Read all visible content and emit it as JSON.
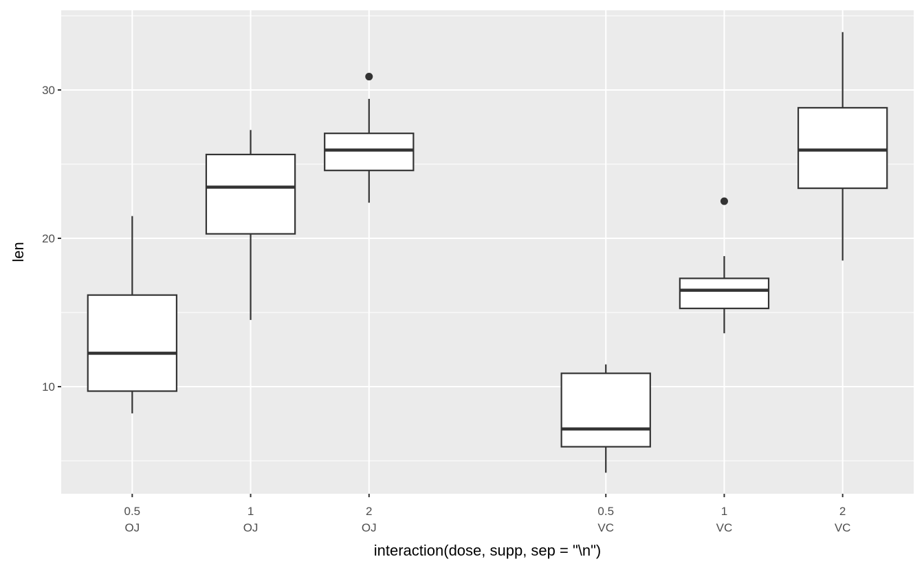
{
  "chart_data": {
    "type": "boxplot",
    "title": "",
    "xlabel": "interaction(dose, supp, sep = \"\\n\")",
    "ylabel": "len",
    "ylim": [
      2.78,
      35.37
    ],
    "y_ticks": [
      10,
      20,
      30
    ],
    "grid": true,
    "panel_background": "#EBEBEB",
    "categories": [
      {
        "dose": "0.5",
        "supp": "OJ",
        "pos": 1
      },
      {
        "dose": "1",
        "supp": "OJ",
        "pos": 2
      },
      {
        "dose": "2",
        "supp": "OJ",
        "pos": 3
      },
      {
        "dose": "0.5",
        "supp": "VC",
        "pos": 5
      },
      {
        "dose": "1",
        "supp": "VC",
        "pos": 6
      },
      {
        "dose": "2",
        "supp": "VC",
        "pos": 7
      }
    ],
    "boxes": [
      {
        "lower_whisker": 8.2,
        "q1": 9.7,
        "median": 12.25,
        "q3": 16.175,
        "upper_whisker": 21.5,
        "outliers": []
      },
      {
        "lower_whisker": 14.5,
        "q1": 20.3,
        "median": 23.45,
        "q3": 25.65,
        "upper_whisker": 27.3,
        "outliers": []
      },
      {
        "lower_whisker": 22.4,
        "q1": 24.575,
        "median": 25.95,
        "q3": 27.075,
        "upper_whisker": 29.4,
        "outliers": [
          30.9
        ]
      },
      {
        "lower_whisker": 4.2,
        "q1": 5.95,
        "median": 7.15,
        "q3": 10.9,
        "upper_whisker": 11.5,
        "outliers": []
      },
      {
        "lower_whisker": 13.6,
        "q1": 15.275,
        "median": 16.5,
        "q3": 17.3,
        "upper_whisker": 18.8,
        "outliers": [
          22.5
        ]
      },
      {
        "lower_whisker": 18.5,
        "q1": 23.375,
        "median": 25.95,
        "q3": 28.8,
        "upper_whisker": 33.9,
        "outliers": []
      }
    ]
  }
}
